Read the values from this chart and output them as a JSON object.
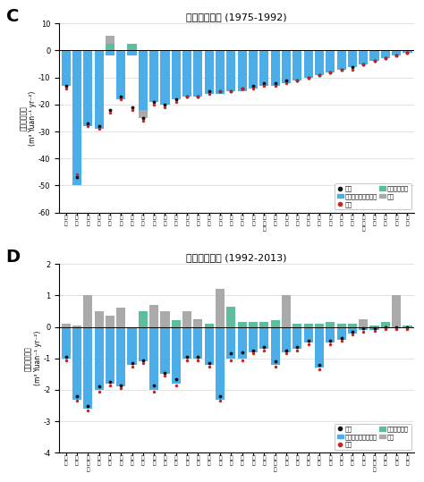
{
  "panel_C": {
    "title": "工业用水强度 (1975-1992)",
    "label": "C",
    "ylim": [
      -60,
      10
    ],
    "yticks": [
      -60,
      -50,
      -40,
      -30,
      -20,
      -10,
      0,
      10
    ],
    "ylabel": "用水强度趋势\n(m³ Yuan⁻¹ yr⁻²)",
    "blue_vals": [
      -13,
      -50,
      -28,
      -29,
      -2,
      -18,
      -2,
      -22,
      -19,
      -20,
      -18,
      -17,
      -17,
      -16,
      -16,
      -15,
      -15,
      -14,
      -13,
      -13,
      -12,
      -11,
      -10,
      -9,
      -8,
      -7,
      -6,
      -5,
      -4,
      -3,
      -2,
      -1
    ],
    "green_vals": [
      0,
      0,
      0,
      0,
      2.5,
      0,
      2.5,
      0,
      0,
      0,
      0,
      0,
      0,
      0,
      0,
      0,
      0,
      0,
      0,
      0,
      0,
      0,
      0,
      0,
      0,
      0,
      0,
      0,
      0,
      0,
      0,
      0
    ],
    "gray_vals": [
      0,
      0,
      0,
      0,
      3,
      0,
      0,
      -3,
      0,
      0,
      0,
      0,
      0,
      0,
      0,
      0,
      0,
      0,
      0,
      0,
      0,
      0,
      0,
      0,
      0,
      0,
      0,
      0,
      0,
      0,
      0,
      0
    ],
    "obs_dots": [
      -13,
      -47,
      -27,
      -28,
      -22,
      -17,
      -21,
      -25,
      -19,
      -20,
      -18,
      -17,
      -17,
      -15,
      -15,
      -15,
      -14,
      -13,
      -12,
      -12,
      -11,
      -11,
      -10,
      -9,
      -8,
      -7,
      -6,
      -5,
      -4,
      -3,
      -2,
      -1
    ],
    "sim_dots": [
      -14,
      -46,
      -28,
      -29,
      -23,
      -18,
      -22,
      -26,
      -20,
      -21,
      -19,
      -17,
      -17,
      -16,
      -15,
      -15,
      -14,
      -14,
      -13,
      -13,
      -12,
      -11,
      -10,
      -9,
      -8,
      -7,
      -7,
      -5,
      -4,
      -3,
      -2,
      -1
    ],
    "x_labels": [
      "陕西",
      "新疆",
      "北京",
      "福建",
      "重庆",
      "三峡",
      "浙江",
      "山西",
      "天津",
      "江苏",
      "湖南",
      "系统",
      "东南",
      "江西",
      "本溪",
      "数据",
      "段周",
      "河南",
      "内蒙古",
      "辽宁",
      "贵州",
      "青海",
      "吉林",
      "宁夏",
      "广东",
      "广西",
      "云南",
      "黑龙江",
      "甘肃",
      "东北",
      "全国",
      "新疆"
    ]
  },
  "panel_D": {
    "title": "工业用水强度 (1992-2013)",
    "label": "D",
    "ylim": [
      -4,
      2
    ],
    "yticks": [
      -4,
      -3,
      -2,
      -1,
      0,
      1,
      2
    ],
    "ylabel": "用水强度趋势\n(m³ Yuan⁻¹ yr⁻²)",
    "blue_vals": [
      -1.0,
      -2.3,
      -2.6,
      -2.0,
      -1.8,
      -1.9,
      -1.2,
      -1.1,
      -2.0,
      -1.5,
      -1.8,
      -1.0,
      -1.0,
      -1.2,
      -2.3,
      -1.0,
      -1.0,
      -0.8,
      -0.7,
      -1.2,
      -0.8,
      -0.7,
      -0.5,
      -1.3,
      -0.5,
      -0.4,
      -0.2,
      -0.1,
      -0.1,
      -0.05,
      -0.05,
      -0.05
    ],
    "green_vals": [
      0.1,
      0.05,
      0.0,
      0.0,
      0.0,
      0.0,
      0.0,
      0.5,
      0.45,
      0.25,
      0.2,
      0.0,
      0.25,
      0.1,
      0.0,
      0.65,
      0.15,
      0.15,
      0.15,
      0.2,
      0.15,
      0.1,
      0.1,
      0.1,
      0.15,
      0.1,
      0.1,
      0.1,
      0.05,
      0.15,
      0.12,
      0.05
    ],
    "gray_vals": [
      0.1,
      0.05,
      1.0,
      0.5,
      0.35,
      0.6,
      0.0,
      0.0,
      0.7,
      0.5,
      0.0,
      0.5,
      0.2,
      0.0,
      1.2,
      0.0,
      0.0,
      0.0,
      0.0,
      0.0,
      1.0,
      0.0,
      0.0,
      0.0,
      0.0,
      0.0,
      0.0,
      0.25,
      0.0,
      0.0,
      1.0,
      0.0
    ],
    "obs_dots": [
      -0.95,
      -2.2,
      -2.5,
      -1.9,
      -1.75,
      -1.85,
      -1.15,
      -1.05,
      -1.85,
      -1.45,
      -1.65,
      -0.95,
      -0.95,
      -1.15,
      -2.2,
      -0.85,
      -0.8,
      -0.75,
      -0.65,
      -1.1,
      -0.75,
      -0.65,
      -0.45,
      -1.2,
      -0.45,
      -0.35,
      -0.15,
      -0.05,
      -0.05,
      -0.02,
      -0.02,
      -0.02
    ],
    "sim_dots": [
      -1.05,
      -2.35,
      -2.65,
      -2.05,
      -1.85,
      -1.95,
      -1.25,
      -1.15,
      -2.05,
      -1.55,
      -1.85,
      -1.05,
      -1.05,
      -1.25,
      -2.35,
      -1.05,
      -1.05,
      -0.85,
      -0.75,
      -1.25,
      -0.85,
      -0.75,
      -0.55,
      -1.35,
      -0.55,
      -0.45,
      -0.25,
      -0.15,
      -0.12,
      -0.07,
      -0.07,
      -0.07
    ],
    "x_labels": [
      "陕西",
      "新疆",
      "三门峡",
      "三峡",
      "重庆",
      "浙江",
      "北京",
      "福建",
      "山西",
      "江苏",
      "天津",
      "湖南",
      "系统",
      "东南",
      "江西",
      "本溪",
      "数据",
      "段周",
      "河南",
      "内蒙古",
      "辽宁",
      "贵州",
      "青海",
      "吉林",
      "宁夏",
      "广东",
      "广西",
      "云南",
      "黑龙江",
      "甘肃",
      "东北",
      "全国"
    ]
  },
  "colors": {
    "blue": "#4BAEE8",
    "green": "#5DBD9F",
    "gray": "#AAAAAA",
    "obs": "#111111",
    "sim": "#CC2222",
    "background": "#FFFFFF"
  }
}
